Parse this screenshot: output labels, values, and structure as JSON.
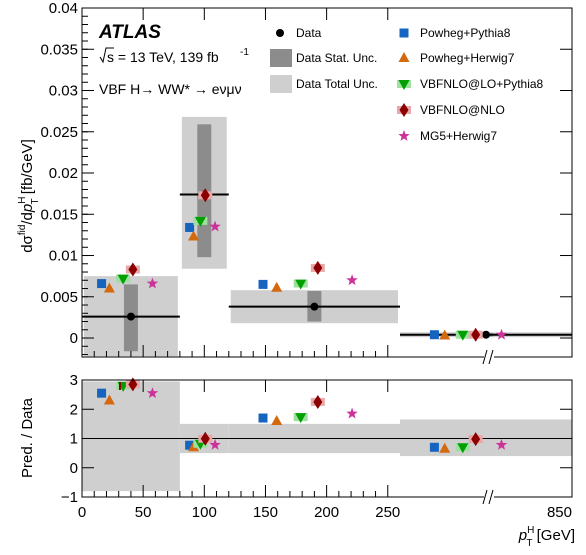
{
  "chart_data": [
    {
      "type": "scatter",
      "panel": "main",
      "ylabel": "dσ^fid/dp_T^H [fb/GeV]",
      "ylim": [
        -0.0023,
        0.04
      ],
      "y_ticks": [
        "0",
        "0.005",
        "0.01",
        "0.015",
        "0.02",
        "0.025",
        "0.03",
        "0.035",
        "0.04"
      ],
      "y_tick_values": [
        0,
        0.005,
        0.01,
        0.015,
        0.02,
        0.025,
        0.03,
        0.035,
        0.04
      ],
      "bins": [
        {
          "x_low": 0,
          "x_high": 80,
          "data": 0.0026,
          "stat_low": -0.0016,
          "stat_high": 0.0065,
          "total_low": -0.0022,
          "total_high": 0.0075,
          "predictions": {
            "powheg_pythia8": 0.0066,
            "powheg_herwig7": 0.006,
            "vbfnlo_lo_pythia8": 0.0072,
            "vbfnlo_nlo": 0.0083,
            "mg5_herwig7": 0.0066
          }
        },
        {
          "x_low": 80,
          "x_high": 120,
          "data": 0.0174,
          "stat_low": 0.0098,
          "stat_high": 0.0259,
          "total_low": 0.0084,
          "total_high": 0.0268,
          "predictions": {
            "powheg_pythia8": 0.0134,
            "powheg_herwig7": 0.0123,
            "vbfnlo_lo_pythia8": 0.0142,
            "vbfnlo_nlo": 0.0173,
            "mg5_herwig7": 0.0135
          }
        },
        {
          "x_low": 120,
          "x_high": 260,
          "data": 0.0038,
          "stat_low": 0.002,
          "stat_high": 0.0057,
          "total_low": 0.0018,
          "total_high": 0.0058,
          "predictions": {
            "powheg_pythia8": 0.0065,
            "powheg_herwig7": 0.0061,
            "vbfnlo_lo_pythia8": 0.0066,
            "vbfnlo_nlo": 0.0085,
            "mg5_herwig7": 0.007
          }
        },
        {
          "x_low": 260,
          "x_high": 850,
          "data": 0.0004,
          "stat_low": 0.0002,
          "stat_high": 0.0006,
          "total_low": 0.0001,
          "total_high": 0.0007,
          "predictions": {
            "powheg_pythia8": 0.0004,
            "powheg_herwig7": 0.0003,
            "vbfnlo_lo_pythia8": 0.0004,
            "vbfnlo_nlo": 0.0004,
            "mg5_herwig7": 0.0004
          }
        }
      ],
      "annotations": {
        "experiment": "ATLAS",
        "energy": "s = 13 TeV, 139 fb",
        "energy_sup": "-1",
        "process": "VBF H→ WW* → eνμν"
      }
    },
    {
      "type": "scatter",
      "panel": "ratio",
      "ylabel": "Pred. / Data",
      "ylim": [
        -1,
        3
      ],
      "y_ticks": [
        "−1",
        "0",
        "1",
        "2",
        "3"
      ],
      "y_tick_values": [
        -1,
        0,
        1,
        2,
        3
      ],
      "xlabel": "p_T^H [GeV]",
      "x_ticks": [
        "0",
        "50",
        "100",
        "150",
        "200",
        "250",
        "850"
      ],
      "x_tick_values": [
        0,
        50,
        100,
        150,
        200,
        250,
        850
      ],
      "ratio_bins": [
        {
          "x_low": 0,
          "x_high": 80,
          "total_low": -0.8,
          "total_high": 2.95,
          "predictions": {
            "powheg_pythia8": 2.55,
            "powheg_herwig7": 2.3,
            "vbfnlo_lo_pythia8": 2.8,
            "vbfnlo_nlo": 2.9,
            "mg5_herwig7": 2.55
          }
        },
        {
          "x_low": 80,
          "x_high": 120,
          "total_low": 0.5,
          "total_high": 1.5,
          "predictions": {
            "powheg_pythia8": 0.77,
            "powheg_herwig7": 0.7,
            "vbfnlo_lo_pythia8": 0.82,
            "vbfnlo_nlo": 0.99,
            "mg5_herwig7": 0.78
          }
        },
        {
          "x_low": 120,
          "x_high": 260,
          "total_low": 0.5,
          "total_high": 1.5,
          "predictions": {
            "powheg_pythia8": 1.7,
            "powheg_herwig7": 1.6,
            "vbfnlo_lo_pythia8": 1.73,
            "vbfnlo_nlo": 2.25,
            "mg5_herwig7": 1.85
          }
        },
        {
          "x_low": 260,
          "x_high": 850,
          "total_low": 0.4,
          "total_high": 1.65,
          "predictions": {
            "powheg_pythia8": 0.7,
            "powheg_herwig7": 0.65,
            "vbfnlo_lo_pythia8": 0.7,
            "vbfnlo_nlo": 0.98,
            "mg5_herwig7": 0.78
          }
        }
      ]
    }
  ],
  "legend": {
    "data": "Data",
    "stat": "Data Stat. Unc.",
    "total": "Data Total Unc.",
    "powheg_pythia8": "Powheg+Pythia8",
    "powheg_herwig7": "Powheg+Herwig7",
    "vbfnlo_lo_pythia8": "VBFNLO@LO+Pythia8",
    "vbfnlo_nlo": "VBFNLO@NLO",
    "mg5_herwig7": "MG5+Herwig7"
  },
  "colors": {
    "stat_band": "#8c8c8c",
    "total_band": "#cfcfcf",
    "powheg_pythia8": "#1565c0",
    "powheg_herwig7": "#d36a10",
    "vbfnlo_lo_pythia8": "#00a000",
    "vbfnlo_nlo": "#8b0000",
    "mg5_herwig7": "#cc3399",
    "vbfnlo_lo_pythia8_band": "#9fdf9f",
    "vbfnlo_nlo_band": "#e8a8a8"
  },
  "axis_break_marks": "//"
}
